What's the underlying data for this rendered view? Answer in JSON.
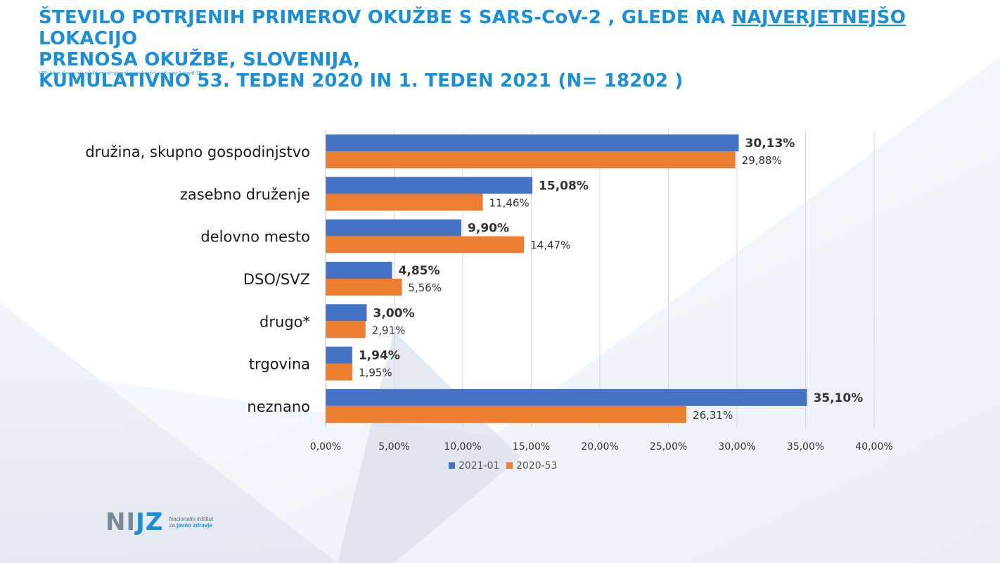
{
  "header": {
    "title_line1_a": "ŠTEVILO POTRJENIH PRIMEROV OKUŽBE S SARS-CoV-2 , GLEDE NA ",
    "title_line1_u": "NAJVERJETNEJŠO",
    "title_line1_b": " LOKACIJO",
    "title_line2": "PRENOSA OKUŽBE, SLOVENIJA,",
    "title_line3": "KUMULATIVNO 53. TEDEN 2020 IN 1. TEDEN 2021  (N= 18202 )",
    "source": "VIR: https://www.nijz.si/sl/dnevno-spremljanje-okuzb-s-sars-cov-2-covid-19"
  },
  "logo": {
    "mark_a": "NI",
    "mark_b": "JZ",
    "line1": "Nacionalni inštitut",
    "line2_a": "za ",
    "line2_b": "javno zdravje"
  },
  "colors": {
    "series1": "#4472c4",
    "series2": "#ed7d31",
    "grid": "#d9d9d9",
    "title": "#1a8fd6"
  },
  "chart_data": {
    "type": "bar",
    "orientation": "horizontal",
    "categories": [
      "družina, skupno gospodinjstvo",
      "zasebno druženje",
      "delovno mesto",
      "DSO/SVZ",
      "drugo*",
      "trgovina",
      "neznano"
    ],
    "series": [
      {
        "name": "2021-01",
        "values": [
          30.13,
          15.08,
          9.9,
          4.85,
          3.0,
          1.94,
          35.1
        ],
        "labels": [
          "30,13%",
          "15,08%",
          "9,90%",
          "4,85%",
          "3,00%",
          "1,94%",
          "35,10%"
        ]
      },
      {
        "name": "2020-53",
        "values": [
          29.88,
          11.46,
          14.47,
          5.56,
          2.91,
          1.95,
          26.31
        ],
        "labels": [
          "29,88%",
          "11,46%",
          "14,47%",
          "5,56%",
          "2,91%",
          "1,95%",
          "26,31%"
        ]
      }
    ],
    "xlim": [
      0,
      40
    ],
    "xticks": [
      "0,00%",
      "5,00%",
      "10,00%",
      "15,00%",
      "20,00%",
      "25,00%",
      "30,00%",
      "35,00%",
      "40,00%"
    ],
    "grid": true,
    "legend": "bottom"
  }
}
